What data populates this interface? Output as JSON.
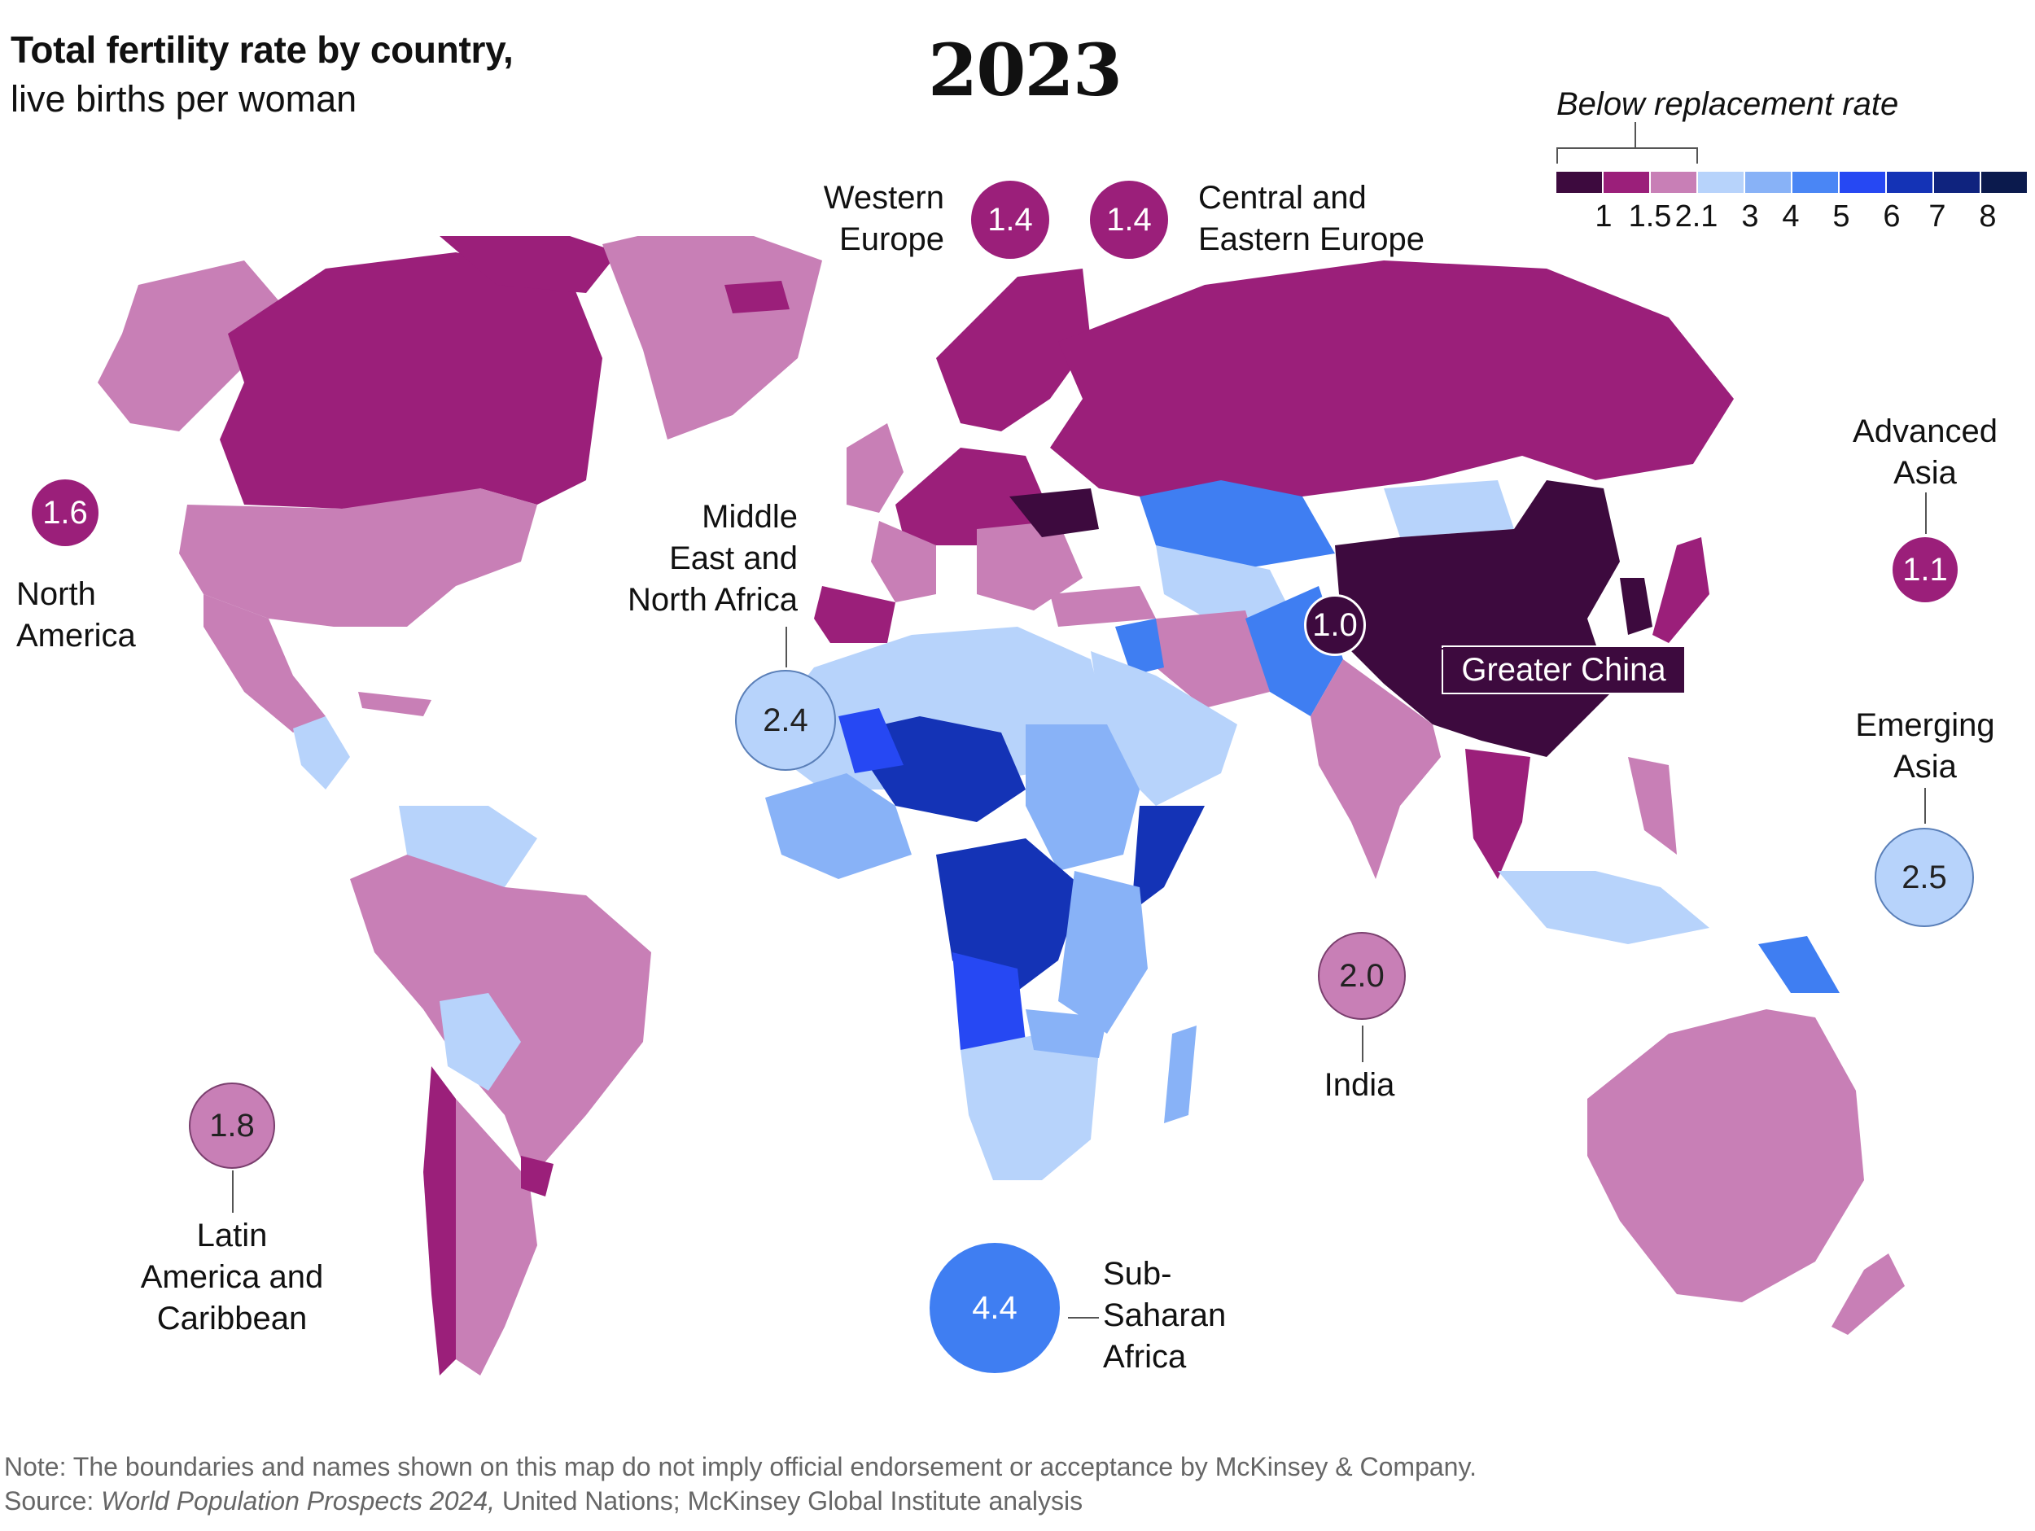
{
  "title": "Total fertility rate by country,",
  "subtitle": "live births per woman",
  "year": "2023",
  "legend": {
    "title": "Below replacement rate",
    "colors": [
      "#3d0a3e",
      "#9b1f7a",
      "#c87fb6",
      "#b7d3fb",
      "#88b2f7",
      "#4a86f5",
      "#2648f3",
      "#1433b6",
      "#0f237e",
      "#0b1a4d"
    ],
    "ticks": [
      "1",
      "1.5",
      "2.1",
      "3",
      "4",
      "5",
      "6",
      "7",
      "8"
    ]
  },
  "regions": [
    {
      "id": "north-america",
      "value": "1.6",
      "label": [
        "North",
        "America"
      ],
      "color": "#9b1f7a"
    },
    {
      "id": "latin-america",
      "value": "1.8",
      "label": [
        "Latin",
        "America and",
        "Caribbean"
      ],
      "color": "#c87fb6"
    },
    {
      "id": "western-europe",
      "value": "1.4",
      "label": [
        "Western",
        "Europe"
      ],
      "color": "#9b1f7a"
    },
    {
      "id": "central-eastern-europe",
      "value": "1.4",
      "label": [
        "Central and",
        "Eastern Europe"
      ],
      "color": "#9b1f7a"
    },
    {
      "id": "mena",
      "value": "2.4",
      "label": [
        "Middle",
        "East and",
        "North Africa"
      ],
      "color": "#b7d3fb"
    },
    {
      "id": "sub-saharan-africa",
      "value": "4.4",
      "label": [
        "Sub-",
        "Saharan",
        "Africa"
      ],
      "color": "#3f7ef2"
    },
    {
      "id": "india",
      "value": "2.0",
      "label": [
        "India"
      ],
      "color": "#c87fb6"
    },
    {
      "id": "greater-china",
      "value": "1.0",
      "label": [
        "Greater China"
      ],
      "color": "#3d0a3e"
    },
    {
      "id": "advanced-asia",
      "value": "1.1",
      "label": [
        "Advanced",
        "Asia"
      ],
      "color": "#9b1f7a"
    },
    {
      "id": "emerging-asia",
      "value": "2.5",
      "label": [
        "Emerging",
        "Asia"
      ],
      "color": "#b7d3fb"
    }
  ],
  "footer": {
    "note": "Note: The boundaries and names shown on this map do not imply official endorsement or acceptance by McKinsey & Company.",
    "source_prefix": "Source: ",
    "source_title": "World Population Prospects 2024,",
    "source_rest": " United Nations; McKinsey Global Institute analysis"
  }
}
